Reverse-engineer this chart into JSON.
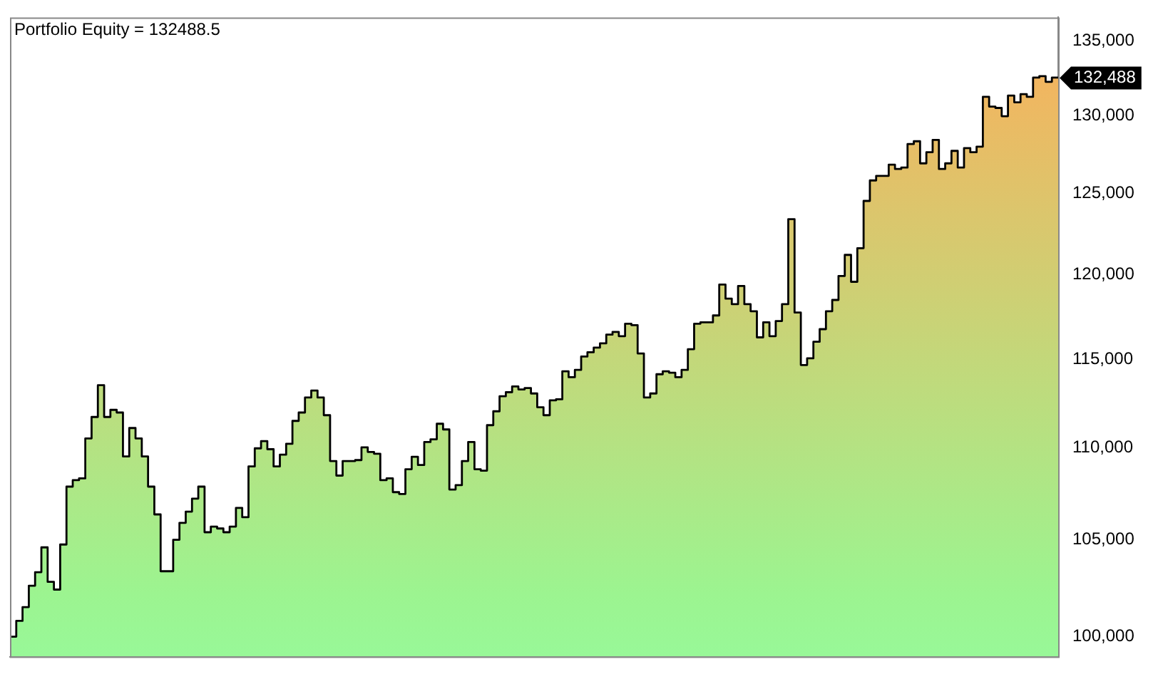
{
  "chart_data": {
    "type": "area",
    "title": "Portfolio Equity = 132488.5",
    "categories": [
      null,
      null,
      null,
      null,
      null,
      null,
      null,
      null,
      null,
      null,
      null,
      null,
      null,
      null,
      null,
      null,
      null,
      null,
      null,
      null,
      null,
      null,
      null,
      null,
      null,
      null,
      null,
      null,
      null,
      null,
      null,
      null,
      null,
      null,
      null,
      null,
      null,
      null,
      null,
      null,
      null,
      null,
      null,
      null,
      null,
      null,
      null,
      null,
      null,
      null,
      null,
      null,
      null,
      null,
      null,
      null,
      null,
      null,
      null,
      null,
      null,
      null,
      null,
      null,
      null,
      null,
      null,
      null,
      null,
      null,
      null,
      null,
      null,
      null,
      null,
      null,
      null,
      null,
      null,
      null,
      null,
      null,
      null,
      null,
      null,
      null,
      null,
      null,
      null,
      null,
      null,
      null,
      null,
      null,
      null,
      null,
      null,
      null,
      null,
      null,
      null,
      null,
      null,
      null,
      null,
      null,
      null,
      null,
      null,
      null,
      null,
      null,
      null,
      null,
      null,
      null,
      null,
      null,
      null,
      null,
      null,
      null,
      null,
      null,
      null,
      null,
      null,
      null,
      null,
      null,
      null,
      null,
      null,
      null,
      null,
      null,
      null,
      null,
      null,
      null,
      null,
      null,
      null,
      null,
      null,
      null,
      null,
      null,
      null,
      null,
      null,
      null,
      null,
      null,
      null,
      null,
      null,
      null,
      null,
      null,
      null,
      null,
      null,
      null,
      null,
      null,
      null,
      null
    ],
    "series": [
      {
        "color": "#000000",
        "values": [
          100000,
          100800,
          101500,
          102600,
          103300,
          104600,
          102800,
          102400,
          104750,
          107850,
          108200,
          108300,
          110500,
          111700,
          113500,
          111700,
          112100,
          111950,
          109500,
          111080,
          110500,
          109500,
          107850,
          106350,
          103350,
          103350,
          105000,
          105900,
          106500,
          107200,
          107850,
          105400,
          105700,
          105600,
          105400,
          105700,
          106700,
          106200,
          108950,
          109950,
          110350,
          109900,
          108950,
          109600,
          110200,
          111480,
          111950,
          112800,
          113200,
          112800,
          111800,
          109250,
          108450,
          109250,
          109250,
          109300,
          110000,
          109750,
          109650,
          108200,
          108300,
          107550,
          107450,
          108800,
          109480,
          109030,
          110300,
          110450,
          111320,
          111000,
          107690,
          107930,
          109250,
          110300,
          108800,
          108720,
          111240,
          112020,
          112870,
          113100,
          113430,
          113260,
          113340,
          113030,
          112250,
          111800,
          112640,
          112700,
          114300,
          113960,
          114380,
          115150,
          115400,
          115670,
          115920,
          116430,
          116590,
          116340,
          117070,
          116990,
          115330,
          112800,
          113030,
          114130,
          114300,
          114220,
          113960,
          114380,
          115580,
          117070,
          117150,
          117150,
          117560,
          119400,
          118560,
          118230,
          119320,
          118230,
          117810,
          116270,
          117150,
          116340,
          117230,
          118230,
          123400,
          117730,
          114660,
          115050,
          116010,
          116750,
          117810,
          118480,
          119920,
          121200,
          119570,
          121610,
          124540,
          125830,
          126120,
          126120,
          126830,
          126560,
          126650,
          128160,
          128340,
          126920,
          127630,
          128430,
          126560,
          126920,
          127720,
          126650,
          127900,
          127630,
          127990,
          131240,
          130600,
          130510,
          129970,
          131330,
          130880,
          131420,
          131240,
          132520,
          132620,
          132240,
          132520,
          132488.5
        ]
      }
    ],
    "log": true,
    "ylim": [
      99000,
      136600
    ],
    "yticks": [
      {
        "value": 100000,
        "label": "100,000"
      },
      {
        "value": 105000,
        "label": "105,000"
      },
      {
        "value": 110000,
        "label": "110,000"
      },
      {
        "value": 115000,
        "label": "115,000"
      },
      {
        "value": 120000,
        "label": "120,000"
      },
      {
        "value": 125000,
        "label": "125,000"
      },
      {
        "value": 130000,
        "label": "130,000"
      },
      {
        "value": 135000,
        "label": "135,000"
      }
    ],
    "tick_labels": "y",
    "annotations": [
      "132,488"
    ]
  }
}
